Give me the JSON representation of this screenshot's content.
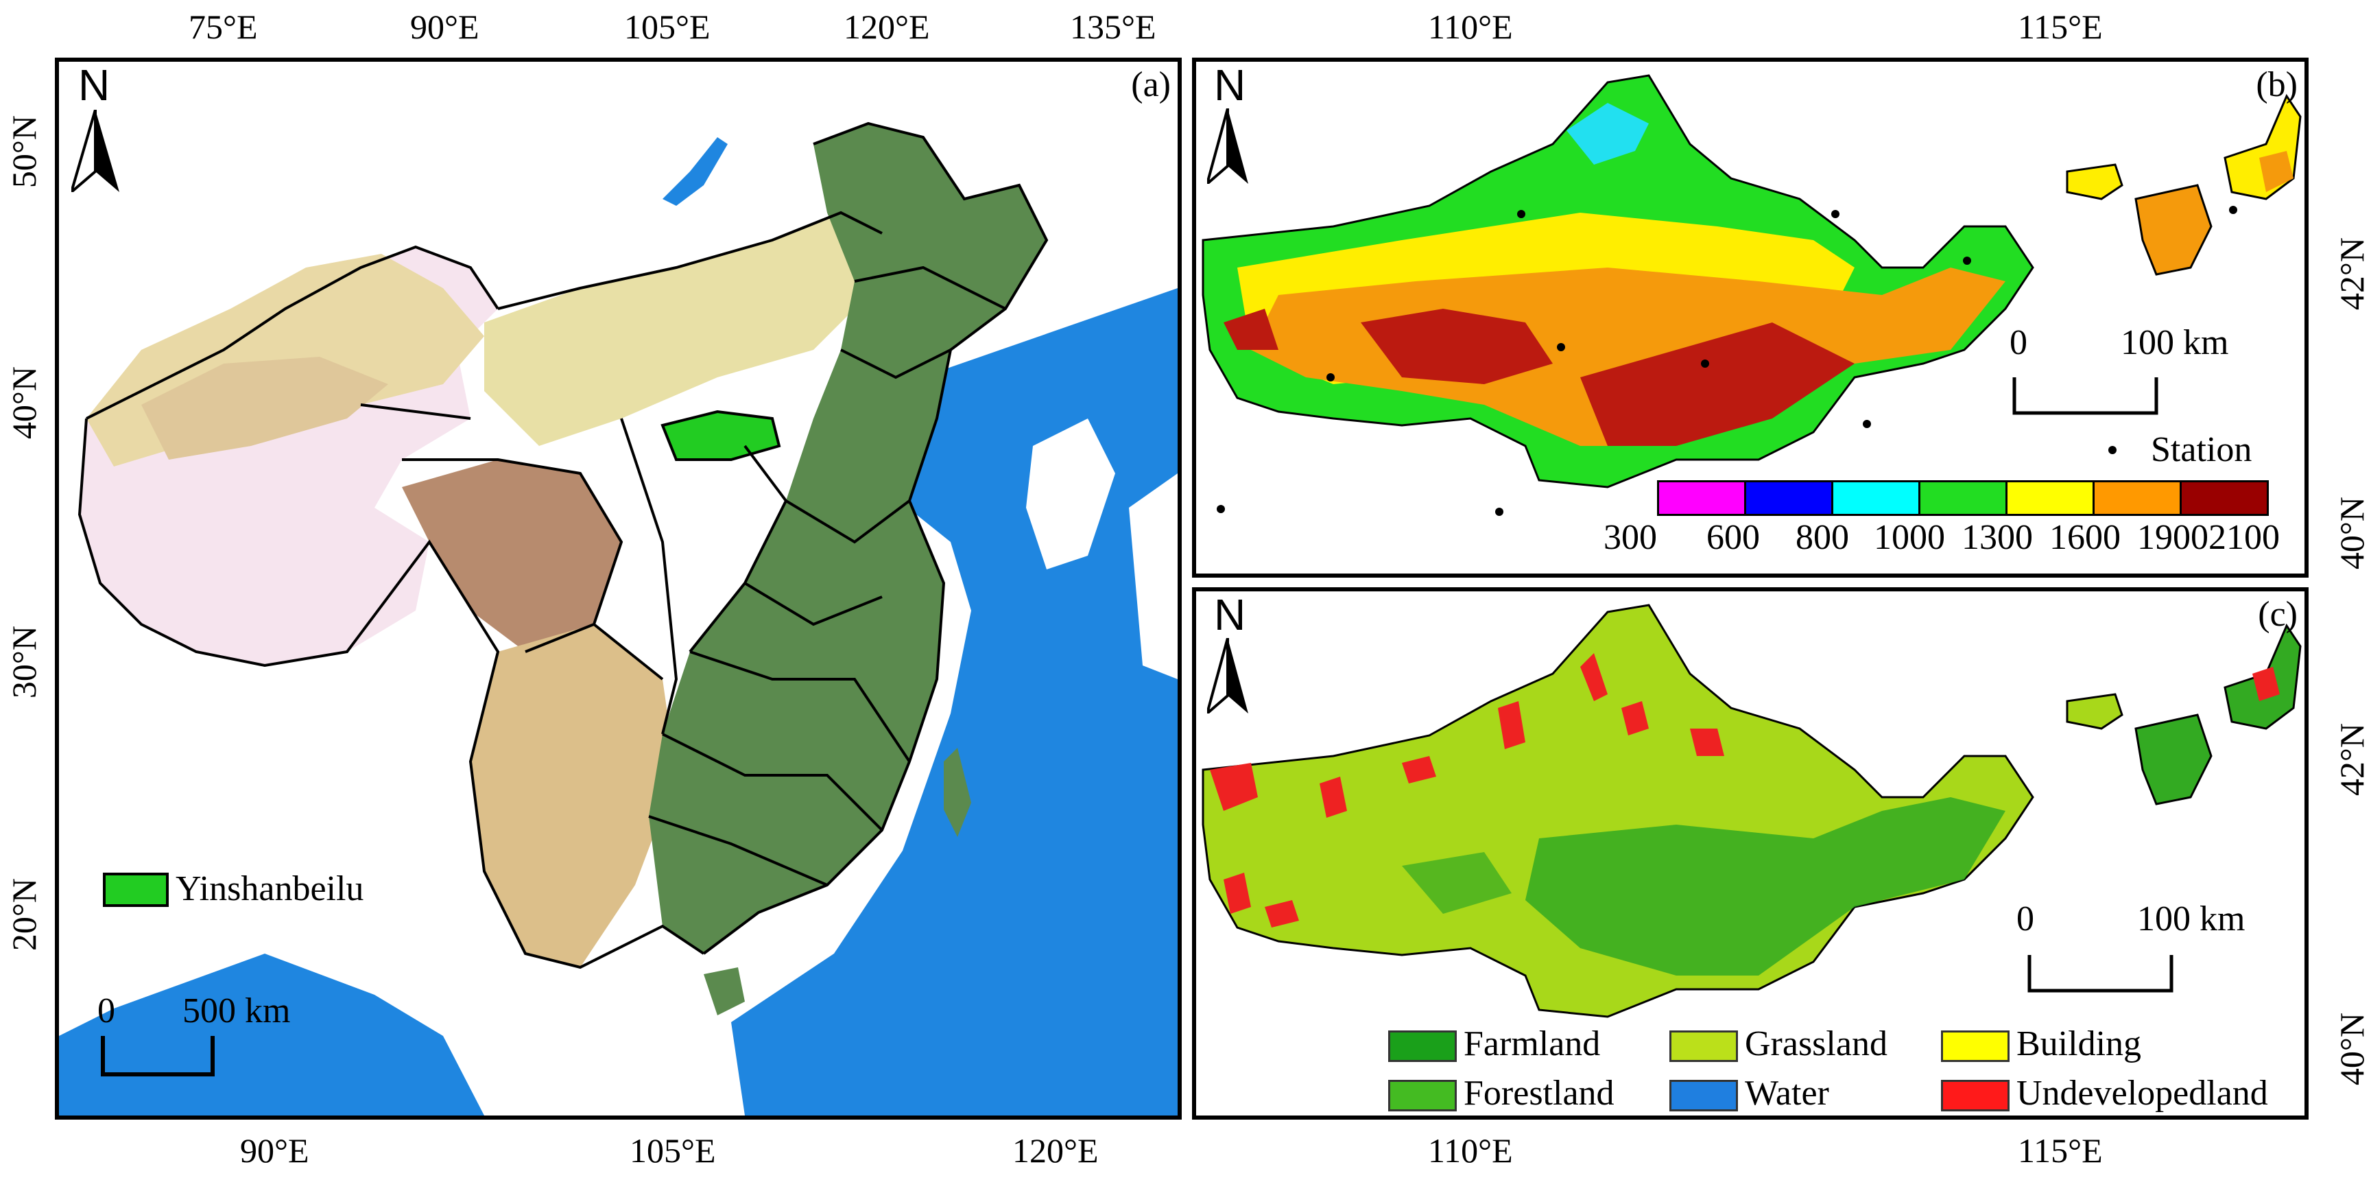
{
  "panelA": {
    "letter": "(a)",
    "north": "N",
    "top_ticks": [
      "75°E",
      "90°E",
      "105°E",
      "120°E",
      "135°E"
    ],
    "bottom_ticks": [
      "90°E",
      "105°E",
      "120°E"
    ],
    "left_ticks": [
      "50°N",
      "40°N",
      "30°N",
      "20°N"
    ],
    "legend_label": "Yinshanbeilu",
    "scalebar_zero": "0",
    "scalebar_label": "500 km",
    "colors": {
      "ocean": "#1f86e0",
      "forest": "#5b8a4e",
      "plain": "#e8e0a6",
      "tan": "#dcbf8a",
      "brown": "#b78b6e",
      "plateau": "#f6e4ee",
      "study": "#22cc22"
    }
  },
  "panelB": {
    "letter": "(b)",
    "north": "N",
    "top_ticks": [
      "110°E",
      "115°E"
    ],
    "right_ticks": [
      "42°N",
      "40°N"
    ],
    "scalebar_zero": "0",
    "scalebar_label": "100 km",
    "station_label": "Station",
    "colorbar_labels": [
      "300",
      "600",
      "800",
      "1000",
      "1300",
      "1600",
      "19002100"
    ],
    "colorbar_colors": [
      "#ff00ff",
      "#0000ff",
      "#00ffff",
      "#22dd22",
      "#ffff00",
      "#ff9900",
      "#990000"
    ],
    "colors": {
      "green": "#22dd22",
      "yellow": "#ffee00",
      "orange": "#f59a0c",
      "red": "#bb1a10",
      "cyan": "#22e0f0"
    }
  },
  "panelC": {
    "letter": "(c)",
    "north": "N",
    "bottom_ticks": [
      "110°E",
      "115°E"
    ],
    "right_ticks": [
      "42°N",
      "40°N"
    ],
    "scalebar_zero": "0",
    "scalebar_label": "100 km",
    "legend": [
      {
        "label": "Farmland",
        "color": "#1aa01a"
      },
      {
        "label": "Grassland",
        "color": "#bbe01a"
      },
      {
        "label": "Building",
        "color": "#ffff00"
      },
      {
        "label": "Forestland",
        "color": "#44bb22"
      },
      {
        "label": "Water",
        "color": "#1f7fe0"
      },
      {
        "label": "Undevelopedland",
        "color": "#ff1a1a"
      }
    ],
    "colors": {
      "grass": "#a8d81a",
      "farm": "#33aa22",
      "red": "#ee2222"
    }
  }
}
